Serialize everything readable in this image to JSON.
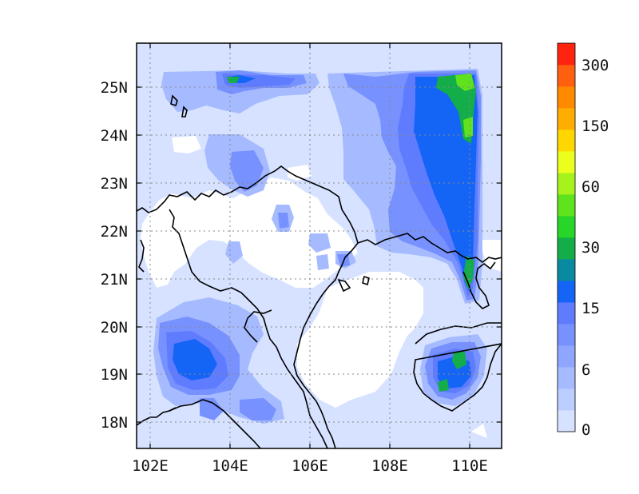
{
  "map": {
    "lat_labels": [
      "25N",
      "24N",
      "23N",
      "22N",
      "21N",
      "20N",
      "19N",
      "18N"
    ],
    "lon_labels": [
      "102E",
      "104E",
      "106E",
      "108E",
      "110E"
    ],
    "lat_values": [
      25,
      24,
      23,
      22,
      21,
      20,
      19,
      18
    ],
    "lon_values": [
      102,
      104,
      106,
      108,
      110
    ],
    "extent": {
      "lon_min": 101.65,
      "lon_max": 110.85,
      "lat_min": 17.45,
      "lat_max": 25.9
    },
    "gridlines": "dotted"
  },
  "colorbar": {
    "tick_labels": [
      "0",
      "6",
      "15",
      "30",
      "60",
      "150",
      "300"
    ],
    "colors": [
      "#d6e2ff",
      "#bccdff",
      "#a6bbff",
      "#8ea6ff",
      "#7791ff",
      "#5f7cff",
      "#1464f5",
      "#0a8aa0",
      "#13ad4a",
      "#28d62a",
      "#5ee31c",
      "#a6f21c",
      "#eaff1e",
      "#ffd700",
      "#ffad00",
      "#ff8a00",
      "#ff6010",
      "#ff2410"
    ]
  }
}
